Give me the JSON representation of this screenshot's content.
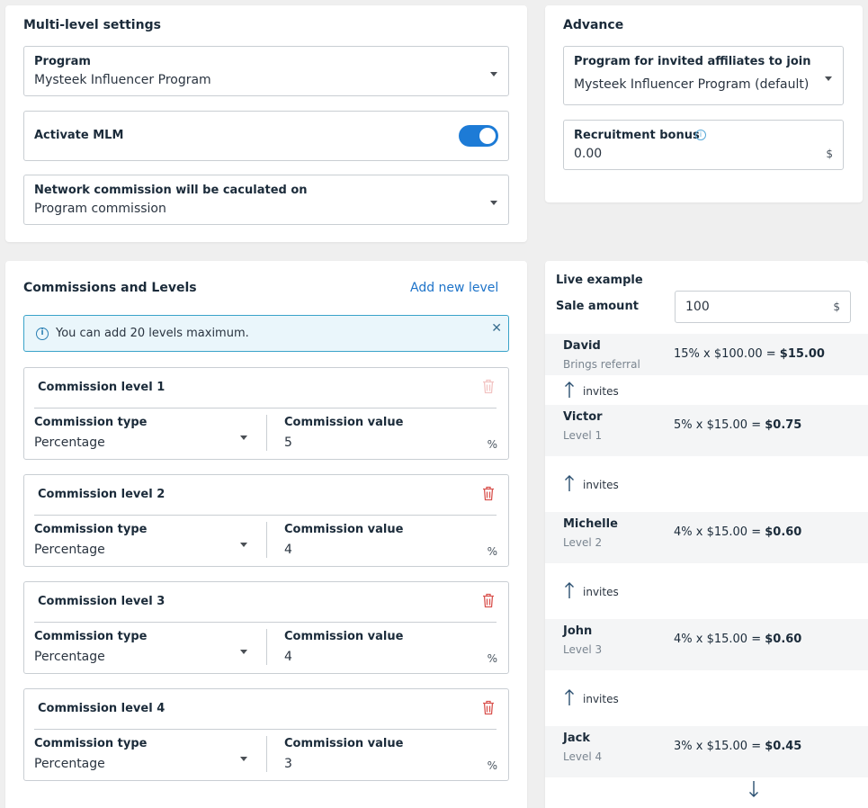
{
  "multi_level": {
    "title": "Multi-level settings",
    "program_label": "Program",
    "program_value": "Mysteek Influencer Program",
    "activate_label": "Activate MLM",
    "activate_on": true,
    "network_label": "Network commission will be caculated on",
    "network_value": "Program commission"
  },
  "advance": {
    "title": "Advance",
    "join_label": "Program for invited affiliates to join",
    "join_value": "Mysteek Influencer Program (default)",
    "bonus_label": "Recruitment bonus",
    "bonus_value": "0.00",
    "bonus_unit": "$"
  },
  "commissions": {
    "title": "Commissions and Levels",
    "add_link": "Add new level",
    "info": "You can add 20 levels maximum.",
    "levels": [
      {
        "title": "Commission level 1",
        "type_label": "Commission type",
        "type_value": "Percentage",
        "value_label": "Commission value",
        "value": "5",
        "unit": "%",
        "deletable": false
      },
      {
        "title": "Commission level 2",
        "type_label": "Commission type",
        "type_value": "Percentage",
        "value_label": "Commission value",
        "value": "4",
        "unit": "%",
        "deletable": true
      },
      {
        "title": "Commission level 3",
        "type_label": "Commission type",
        "type_value": "Percentage",
        "value_label": "Commission value",
        "value": "4",
        "unit": "%",
        "deletable": true
      },
      {
        "title": "Commission level 4",
        "type_label": "Commission type",
        "type_value": "Percentage",
        "value_label": "Commission value",
        "value": "3",
        "unit": "%",
        "deletable": true
      }
    ]
  },
  "live": {
    "title": "Live example",
    "sale_label": "Sale amount",
    "sale_value": "100",
    "sale_unit": "$",
    "invites_label": "invites",
    "rows": [
      {
        "name": "David",
        "sub": "Brings referral",
        "calc": "15% x $100.00 = ",
        "result": "$15.00"
      },
      {
        "name": "Victor",
        "sub": "Level 1",
        "calc": "5% x $15.00 = ",
        "result": "$0.75"
      },
      {
        "name": "Michelle",
        "sub": "Level 2",
        "calc": "4% x $15.00 = ",
        "result": "$0.60"
      },
      {
        "name": "John",
        "sub": "Level 3",
        "calc": "4% x $15.00 = ",
        "result": "$0.60"
      },
      {
        "name": "Jack",
        "sub": "Level 4",
        "calc": "3% x $15.00 = ",
        "result": "$0.45"
      }
    ]
  },
  "colors": {
    "accent": "#1d7bd6",
    "danger": "#d9534f",
    "info_border": "#3aa3c9"
  }
}
